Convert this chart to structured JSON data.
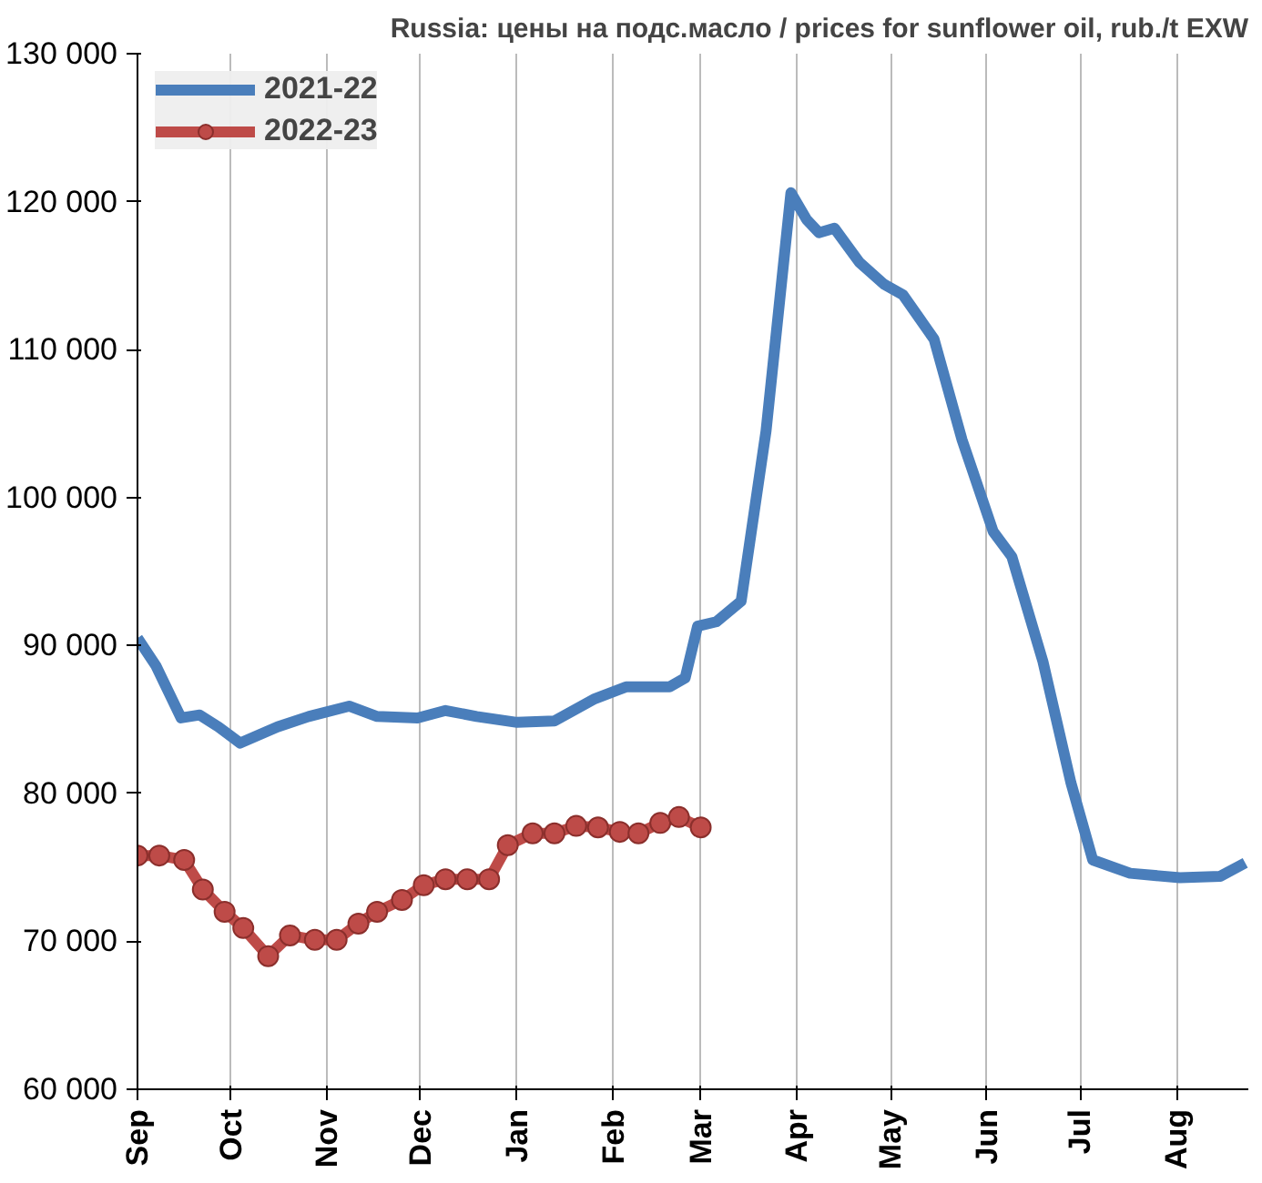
{
  "chart_data": {
    "type": "line",
    "title": "Russia: цены на подс.масло / prices for sunflower oil, rub./t EXW",
    "xlim": [
      "2021-09-01",
      "2022-08-24"
    ],
    "xticks": [
      {
        "value": "2021-09-01",
        "label": "Sep"
      },
      {
        "value": "2021-10-01",
        "label": "Oct"
      },
      {
        "value": "2021-11-01",
        "label": "Nov"
      },
      {
        "value": "2021-12-01",
        "label": "Dec"
      },
      {
        "value": "2022-01-01",
        "label": "Jan"
      },
      {
        "value": "2022-02-01",
        "label": "Feb"
      },
      {
        "value": "2022-03-01",
        "label": "Mar"
      },
      {
        "value": "2022-04-01",
        "label": "Apr"
      },
      {
        "value": "2022-05-01",
        "label": "May"
      },
      {
        "value": "2022-06-01",
        "label": "Jun"
      },
      {
        "value": "2022-07-01",
        "label": "Jul"
      },
      {
        "value": "2022-08-01",
        "label": "Aug"
      }
    ],
    "ylim": [
      60000,
      130000
    ],
    "yticks": [
      {
        "value": 60000,
        "label": "60 000"
      },
      {
        "value": 70000,
        "label": "70 000"
      },
      {
        "value": 80000,
        "label": "80 000"
      },
      {
        "value": 90000,
        "label": "90 000"
      },
      {
        "value": 100000,
        "label": "100 000"
      },
      {
        "value": 110000,
        "label": "110 000"
      },
      {
        "value": 120000,
        "label": "120 000"
      },
      {
        "value": 130000,
        "label": "130 000"
      }
    ],
    "grid": "x",
    "legend": "top left",
    "series": [
      {
        "name": "2021-22",
        "color": "#4a7ebb",
        "marker": "none",
        "x": [
          "2021-09-01",
          "2021-09-07",
          "2021-09-15",
          "2021-09-21",
          "2021-09-27",
          "2021-10-04",
          "2021-10-16",
          "2021-10-26",
          "2021-11-08",
          "2021-11-17",
          "2021-11-30",
          "2021-12-09",
          "2021-12-19",
          "2022-01-01",
          "2022-01-13",
          "2022-01-26",
          "2022-02-05",
          "2022-02-19",
          "2022-02-24",
          "2022-02-28",
          "2022-03-06",
          "2022-03-14",
          "2022-03-22",
          "2022-03-30",
          "2022-04-04",
          "2022-04-08",
          "2022-04-13",
          "2022-04-21",
          "2022-04-29",
          "2022-05-05",
          "2022-05-15",
          "2022-05-24",
          "2022-06-03",
          "2022-06-09",
          "2022-06-19",
          "2022-06-28",
          "2022-07-05",
          "2022-07-17",
          "2022-08-02",
          "2022-08-15",
          "2022-08-23"
        ],
        "values": [
          90500,
          88600,
          85100,
          85300,
          84500,
          83400,
          84500,
          85200,
          85900,
          85200,
          85100,
          85600,
          85200,
          84800,
          84900,
          86400,
          87200,
          87200,
          87800,
          91300,
          91600,
          93000,
          104500,
          120600,
          118800,
          117900,
          118200,
          115900,
          114400,
          113700,
          110700,
          103900,
          97700,
          96000,
          88900,
          80700,
          75500,
          74600,
          74300,
          74400,
          75300
        ]
      },
      {
        "name": "2022-23",
        "color": "#be4b48",
        "marker": "circle",
        "x": [
          "2021-09-01",
          "2021-09-08",
          "2021-09-16",
          "2021-09-22",
          "2021-09-29",
          "2021-10-05",
          "2021-10-13",
          "2021-10-20",
          "2021-10-28",
          "2021-11-04",
          "2021-11-11",
          "2021-11-17",
          "2021-11-25",
          "2021-12-02",
          "2021-12-09",
          "2021-12-16",
          "2021-12-23",
          "2021-12-29",
          "2022-01-06",
          "2022-01-13",
          "2022-01-20",
          "2022-01-27",
          "2022-02-03",
          "2022-02-09",
          "2022-02-16",
          "2022-02-22",
          "2022-03-01"
        ],
        "values": [
          75800,
          75800,
          75500,
          73500,
          72000,
          70900,
          69000,
          70400,
          70100,
          70100,
          71200,
          72000,
          72800,
          73800,
          74200,
          74200,
          74200,
          76500,
          77300,
          77300,
          77800,
          77700,
          77400,
          77300,
          78000,
          78400,
          77700
        ]
      }
    ]
  }
}
